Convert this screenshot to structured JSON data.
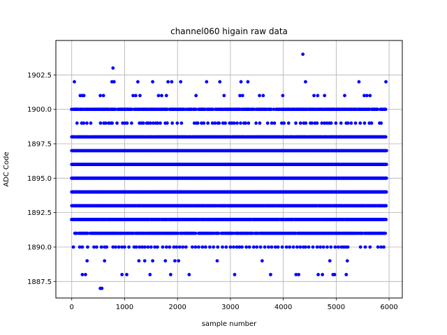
{
  "chart_data": {
    "type": "scatter",
    "title": "channel060 higain raw data",
    "xlabel": "sample number",
    "ylabel": "ADC Code",
    "xlim": [
      -300,
      6250
    ],
    "ylim": [
      1886.3,
      1905.0
    ],
    "xticks": [
      0,
      1000,
      2000,
      3000,
      4000,
      5000,
      6000
    ],
    "xtick_labels": [
      "0",
      "1000",
      "2000",
      "3000",
      "4000",
      "5000",
      "6000"
    ],
    "yticks": [
      1887.5,
      1890.0,
      1892.5,
      1895.0,
      1897.5,
      1900.0,
      1902.5
    ],
    "ytick_labels": [
      "1887.5",
      "1890.0",
      "1892.5",
      "1895.0",
      "1897.5",
      "1900.0",
      "1902.5"
    ],
    "grid": true,
    "marker_color": "#0000ff",
    "series": [
      {
        "x_range": [
          0,
          5950
        ],
        "levels": [
          {
            "y": 1887,
            "x": [
              540,
              570
            ]
          },
          {
            "y": 1888,
            "x": [
              200,
              260,
              950,
              1040,
              1480,
              1870,
              2220,
              3080,
              3760,
              4240,
              4290,
              4660,
              4740,
              4940,
              4970,
              5190
            ]
          },
          {
            "y": 1889,
            "x": [
              290,
              620,
              1270,
              1380,
              1530,
              1770,
              1950,
              2020,
              2750,
              3600,
              4880,
              5210
            ]
          },
          {
            "y": 1890,
            "x": [
              30,
              150,
              200,
              300,
              420,
              470,
              560,
              620,
              660,
              780,
              830,
              890,
              950,
              1000,
              1080,
              1180,
              1220,
              1280,
              1330,
              1380,
              1440,
              1500,
              1570,
              1620,
              1720,
              1790,
              1850,
              1930,
              1980,
              2040,
              2100,
              2160,
              2280,
              2340,
              2400,
              2470,
              2530,
              2610,
              2680,
              2760,
              2850,
              2920,
              3000,
              3060,
              3120,
              3170,
              3220,
              3300,
              3360,
              3440,
              3500,
              3570,
              3650,
              3720,
              3780,
              3850,
              3900,
              3980,
              4060,
              4120,
              4190,
              4260,
              4320,
              4380,
              4420,
              4480,
              4560,
              4640,
              4700,
              4760,
              4830,
              4900,
              4980,
              5040,
              5100,
              5140,
              5180,
              5220,
              5460,
              5550,
              5640,
              5790,
              5850,
              5900
            ]
          },
          {
            "y": 1891,
            "x_band": [
              60,
              5950
            ],
            "density": "dense-gapped"
          },
          {
            "y": 1892,
            "x_band": [
              0,
              5950
            ],
            "density": "dense"
          },
          {
            "y": 1893,
            "x_band": [
              0,
              5950
            ],
            "density": "dense"
          },
          {
            "y": 1894,
            "x_band": [
              0,
              5950
            ],
            "density": "full"
          },
          {
            "y": 1895,
            "x_band": [
              0,
              5950
            ],
            "density": "full"
          },
          {
            "y": 1896,
            "x_band": [
              0,
              5950
            ],
            "density": "full"
          },
          {
            "y": 1897,
            "x_band": [
              0,
              5950
            ],
            "density": "full"
          },
          {
            "y": 1898,
            "x_band": [
              0,
              5950
            ],
            "density": "dense"
          },
          {
            "y": 1899,
            "x_band": [
              100,
              5900
            ],
            "density": "sparse"
          },
          {
            "y": 1900,
            "x_band": [
              0,
              5950
            ],
            "density": "dense-gapped"
          },
          {
            "y": 1901,
            "x": [
              160,
              200,
              230,
              540,
              600,
              1160,
              1210,
              1290,
              1640,
              1700,
              1790,
              2350,
              2880,
              3180,
              3230,
              3550,
              3620,
              3990,
              4580,
              4650,
              4780,
              5160,
              5530,
              5580,
              5640
            ]
          },
          {
            "y": 1902,
            "x": [
              50,
              760,
              800,
              1250,
              1530,
              1820,
              1890,
              2060,
              2550,
              2800,
              3200,
              3330,
              4420,
              5430,
              5940
            ]
          },
          {
            "y": 1903,
            "x": [
              780
            ]
          },
          {
            "y": 1904,
            "x": [
              4370
            ]
          }
        ]
      }
    ]
  }
}
